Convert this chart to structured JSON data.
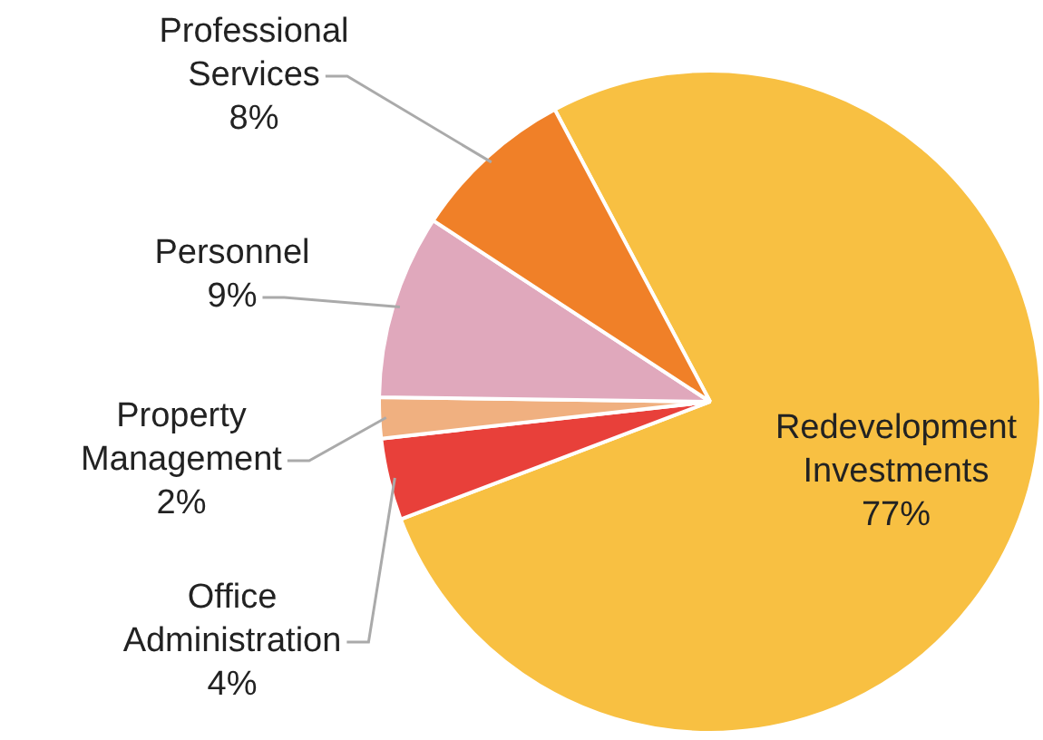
{
  "chart_data": {
    "type": "pie",
    "categories": [
      "Redevelopment Investments",
      "Office Administration",
      "Property Management",
      "Personnel",
      "Professional Services"
    ],
    "values": [
      77,
      4,
      2,
      9,
      8
    ],
    "colors": [
      "#f8c042",
      "#e8403a",
      "#f0b080",
      "#e0a8bc",
      "#f08028"
    ],
    "value_labels": [
      "77%",
      "4%",
      "2%",
      "9%",
      "8%"
    ],
    "legend": false
  }
}
